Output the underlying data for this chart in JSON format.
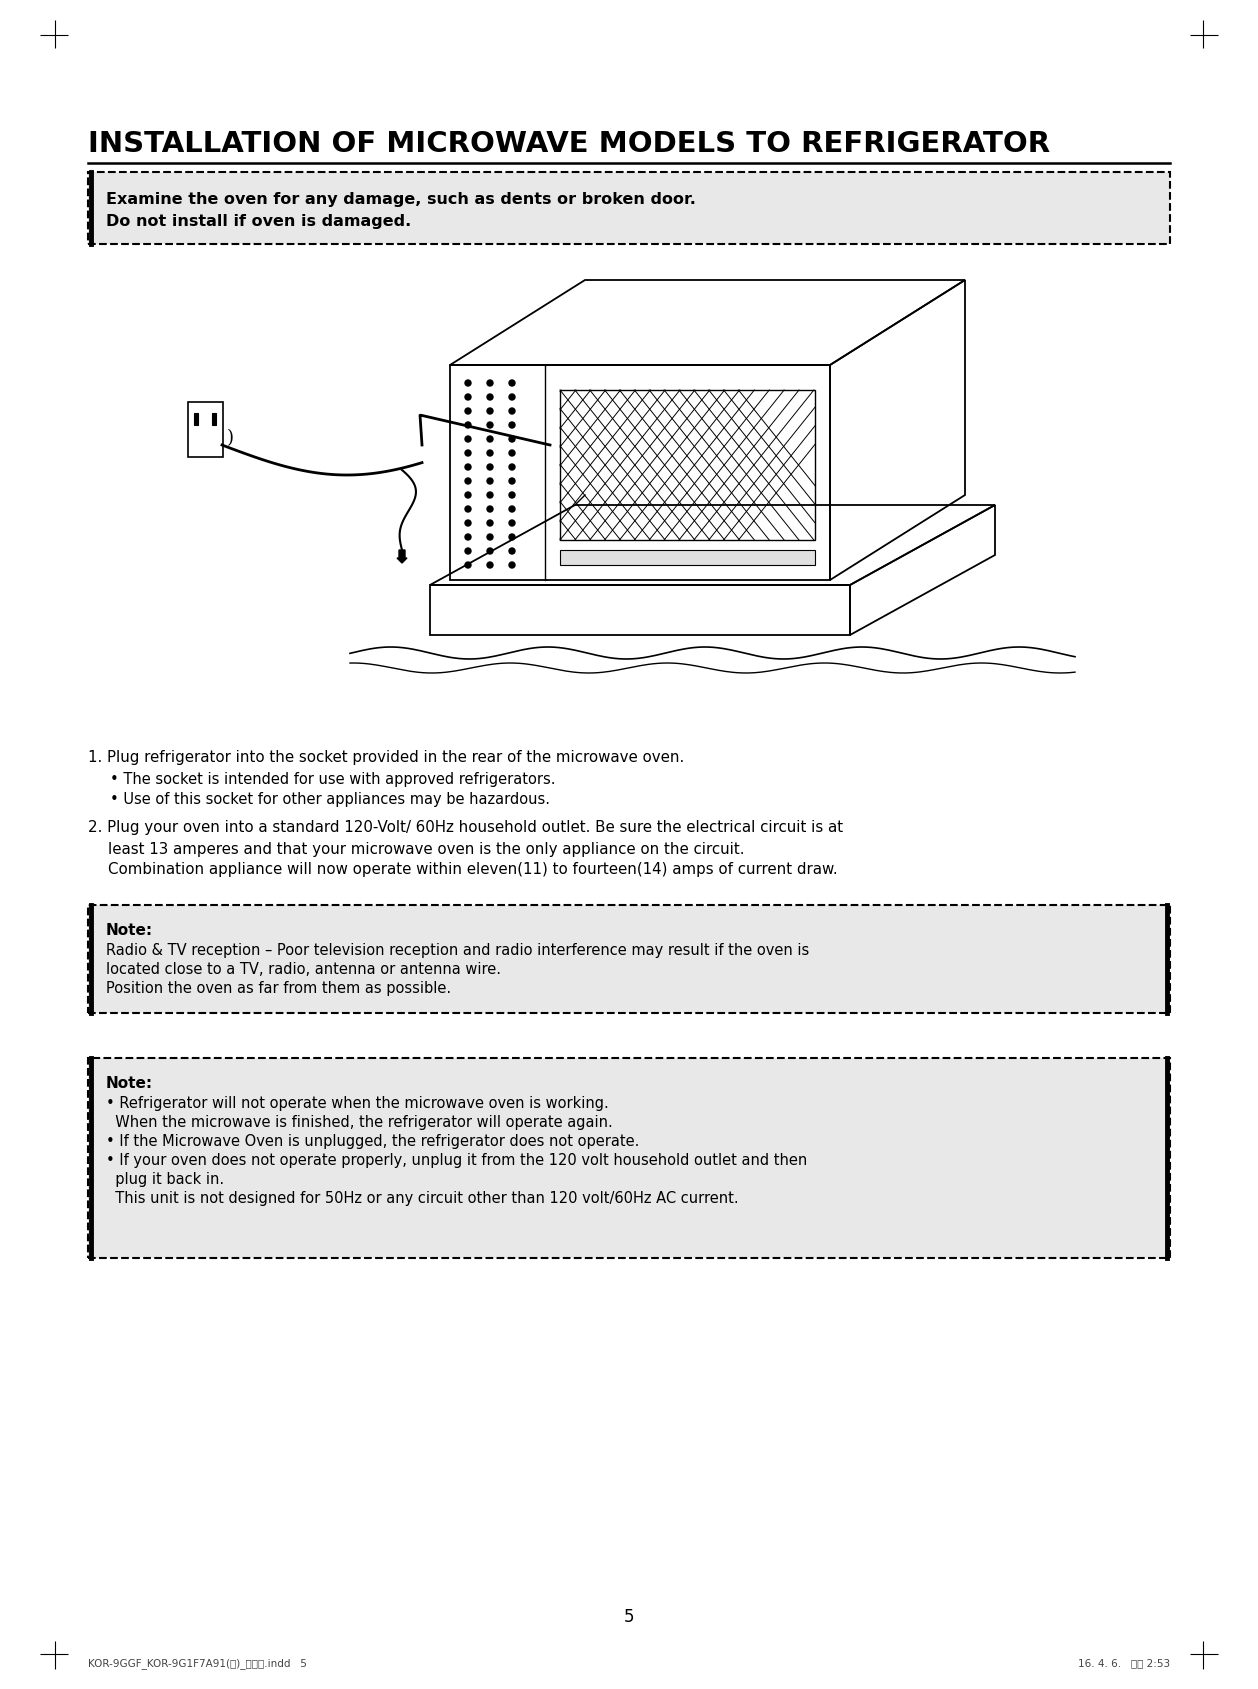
{
  "title": "INSTALLATION OF MICROWAVE MODELS TO REFRIGERATOR",
  "bg_color": "#ffffff",
  "text_color": "#000000",
  "box_bg_color": "#e8e8e8",
  "warning_box": {
    "line1": "Examine the oven for any damage, such as dents or broken door.",
    "line2": "Do not install if oven is damaged."
  },
  "step1_main": "1. Plug refrigerator into the socket provided in the rear of the microwave oven.",
  "step1_sub1": "• The socket is intended for use with approved refrigerators.",
  "step1_sub2": "• Use of this socket for other appliances may be hazardous.",
  "step2_main": "2. Plug your oven into a standard 120-Volt/ 60Hz household outlet. Be sure the electrical circuit is at",
  "step2_line2": "least 13 amperes and that your microwave oven is the only appliance on the circuit.",
  "step2_line3": "Combination appliance will now operate within eleven(11) to fourteen(14) amps of current draw.",
  "note1_title": "Note:",
  "note1_line1": "Radio & TV reception – Poor television reception and radio interference may result if the oven is",
  "note1_line2": "located close to a TV, radio, antenna or antenna wire.",
  "note1_line3": "Position the oven as far from them as possible.",
  "note2_title": "Note:",
  "note2_bullet1a": "• Refrigerator will not operate when the microwave oven is working.",
  "note2_bullet1b": "  When the microwave is finished, the refrigerator will operate again.",
  "note2_bullet2": "• If the Microwave Oven is unplugged, the refrigerator does not operate.",
  "note2_bullet3a": "• If your oven does not operate properly, unplug it from the 120 volt household outlet and then",
  "note2_bullet3b": "  plug it back in.",
  "note2_bullet3c": "  This unit is not designed for 50Hz or any circuit other than 120 volt/60Hz AC current.",
  "page_number": "5",
  "footer_left": "KOR-9GGF_KOR-9G1F7A91(영)_규격용.indd   5",
  "footer_right": "16. 4. 6.   오후 2:53"
}
